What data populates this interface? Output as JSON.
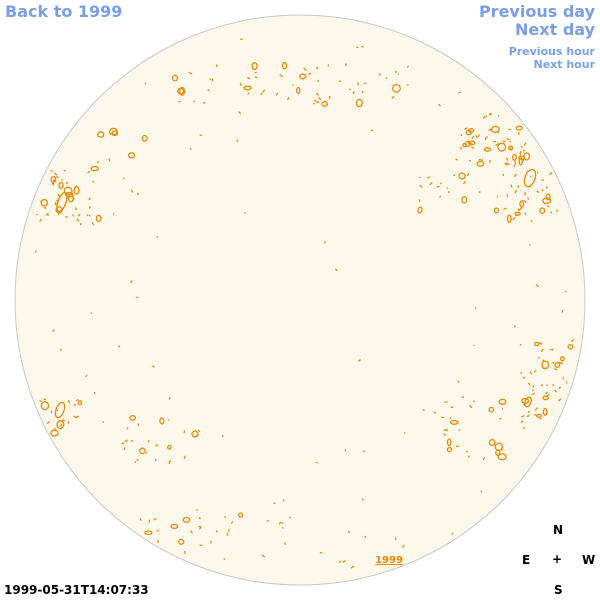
{
  "nav": {
    "back": "Back to 1999",
    "previous_day": "Previous day",
    "next_day": "Next day",
    "previous_hour": "Previous hour",
    "next_hour": "Next hour"
  },
  "disk": {
    "year_link": "1999",
    "fill_color": "#fdf8ec",
    "contour_color": "#e88a00"
  },
  "compass": {
    "north": "N",
    "east": "E",
    "center": "+",
    "west": "W",
    "south": "S"
  },
  "timestamp": "1999-05-31T14:07:33"
}
